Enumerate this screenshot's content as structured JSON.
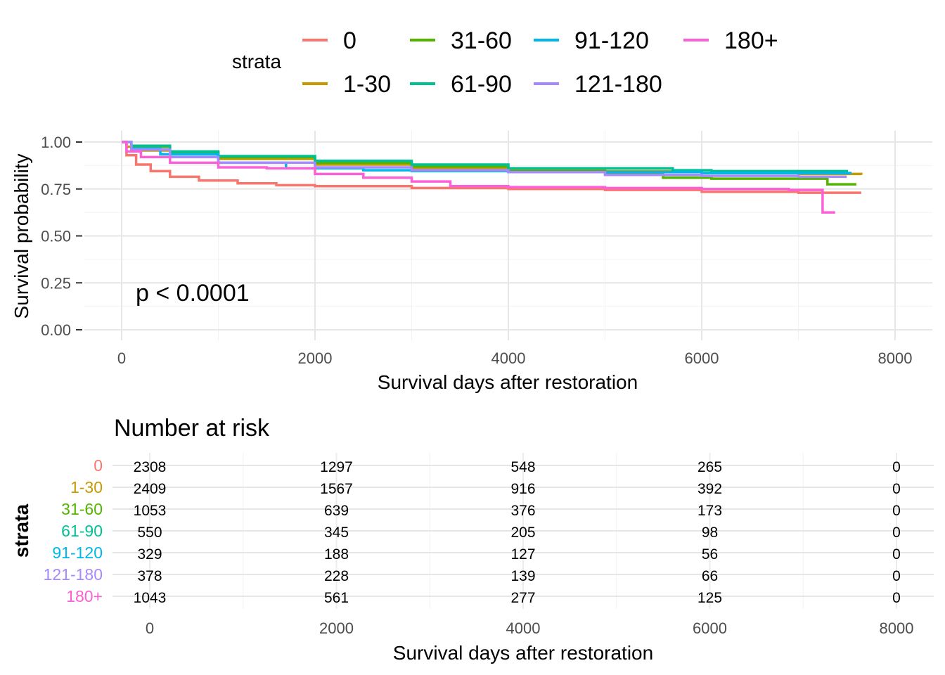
{
  "chart_data": [
    {
      "type": "line",
      "subtype": "kaplan-meier-step",
      "xlabel": "Survival days after restoration",
      "ylabel": "Survival probability",
      "xlim": [
        0,
        8000
      ],
      "ylim": [
        0,
        1
      ],
      "x_ticks": [
        "0",
        "2000",
        "4000",
        "6000",
        "8000"
      ],
      "y_ticks": [
        "0.00",
        "0.25",
        "0.50",
        "0.75",
        "1.00"
      ],
      "grid": true,
      "annotation": "p < 0.0001",
      "legend": {
        "title": "strata",
        "position": "top"
      },
      "series": [
        {
          "name": "0",
          "color": "#F8766D",
          "points": [
            [
              0,
              1.0
            ],
            [
              50,
              0.93
            ],
            [
              150,
              0.88
            ],
            [
              300,
              0.845
            ],
            [
              500,
              0.815
            ],
            [
              800,
              0.795
            ],
            [
              1200,
              0.78
            ],
            [
              1600,
              0.77
            ],
            [
              2000,
              0.765
            ],
            [
              3000,
              0.755
            ],
            [
              4000,
              0.75
            ],
            [
              5000,
              0.745
            ],
            [
              6000,
              0.735
            ],
            [
              7000,
              0.73
            ],
            [
              7650,
              0.73
            ]
          ]
        },
        {
          "name": "1-30",
          "color": "#C49A00",
          "points": [
            [
              0,
              1.0
            ],
            [
              50,
              0.975
            ],
            [
              200,
              0.955
            ],
            [
              500,
              0.935
            ],
            [
              1000,
              0.91
            ],
            [
              2000,
              0.88
            ],
            [
              3000,
              0.86
            ],
            [
              4000,
              0.85
            ],
            [
              5000,
              0.845
            ],
            [
              6000,
              0.835
            ],
            [
              7000,
              0.83
            ],
            [
              7650,
              0.825
            ]
          ]
        },
        {
          "name": "31-60",
          "color": "#53B400",
          "points": [
            [
              0,
              1.0
            ],
            [
              100,
              0.975
            ],
            [
              500,
              0.945
            ],
            [
              1000,
              0.92
            ],
            [
              2000,
              0.89
            ],
            [
              3000,
              0.87
            ],
            [
              4000,
              0.845
            ],
            [
              5000,
              0.83
            ],
            [
              5600,
              0.81
            ],
            [
              6100,
              0.805
            ],
            [
              7300,
              0.805
            ],
            [
              7300,
              0.775
            ],
            [
              7600,
              0.775
            ]
          ]
        },
        {
          "name": "61-90",
          "color": "#00C094",
          "points": [
            [
              0,
              1.0
            ],
            [
              100,
              0.98
            ],
            [
              500,
              0.95
            ],
            [
              1000,
              0.925
            ],
            [
              2000,
              0.9
            ],
            [
              3000,
              0.88
            ],
            [
              4000,
              0.86
            ],
            [
              5000,
              0.86
            ],
            [
              5700,
              0.85
            ],
            [
              6100,
              0.845
            ],
            [
              7500,
              0.84
            ]
          ]
        },
        {
          "name": "91-120",
          "color": "#00B6EB",
          "points": [
            [
              0,
              1.0
            ],
            [
              100,
              0.965
            ],
            [
              400,
              0.935
            ],
            [
              1000,
              0.89
            ],
            [
              1700,
              0.86
            ],
            [
              2500,
              0.85
            ],
            [
              3000,
              0.845
            ],
            [
              4000,
              0.84
            ],
            [
              5000,
              0.84
            ],
            [
              6000,
              0.835
            ],
            [
              7550,
              0.835
            ]
          ]
        },
        {
          "name": "121-180",
          "color": "#A58AFF",
          "points": [
            [
              0,
              1.0
            ],
            [
              100,
              0.96
            ],
            [
              500,
              0.92
            ],
            [
              1000,
              0.89
            ],
            [
              2000,
              0.865
            ],
            [
              3000,
              0.85
            ],
            [
              4000,
              0.84
            ],
            [
              5000,
              0.825
            ],
            [
              6000,
              0.82
            ],
            [
              7000,
              0.815
            ],
            [
              7500,
              0.815
            ]
          ]
        },
        {
          "name": "180+",
          "color": "#FB61D7",
          "points": [
            [
              0,
              1.0
            ],
            [
              50,
              0.95
            ],
            [
              200,
              0.92
            ],
            [
              500,
              0.89
            ],
            [
              1000,
              0.865
            ],
            [
              1500,
              0.86
            ],
            [
              2000,
              0.83
            ],
            [
              2500,
              0.81
            ],
            [
              3000,
              0.79
            ],
            [
              3400,
              0.765
            ],
            [
              4000,
              0.76
            ],
            [
              5000,
              0.755
            ],
            [
              6000,
              0.75
            ],
            [
              6900,
              0.745
            ],
            [
              7250,
              0.745
            ],
            [
              7250,
              0.625
            ],
            [
              7380,
              0.625
            ]
          ]
        }
      ]
    },
    {
      "type": "table",
      "title": "Number at risk",
      "xlabel": "Survival days after restoration",
      "ylabel": "strata",
      "xlim": [
        0,
        8000
      ],
      "x_ticks": [
        "0",
        "2000",
        "4000",
        "6000",
        "8000"
      ],
      "columns_x": [
        0,
        2000,
        4000,
        6000,
        8000
      ],
      "rows": [
        {
          "strata": "0",
          "color": "#F8766D",
          "values": [
            "2308",
            "1297",
            "548",
            "265",
            "0"
          ]
        },
        {
          "strata": "1-30",
          "color": "#C49A00",
          "values": [
            "2409",
            "1567",
            "916",
            "392",
            "0"
          ]
        },
        {
          "strata": "31-60",
          "color": "#53B400",
          "values": [
            "1053",
            "639",
            "376",
            "173",
            "0"
          ]
        },
        {
          "strata": "61-90",
          "color": "#00C094",
          "values": [
            "550",
            "345",
            "205",
            "98",
            "0"
          ]
        },
        {
          "strata": "91-120",
          "color": "#00B6EB",
          "values": [
            "329",
            "188",
            "127",
            "56",
            "0"
          ]
        },
        {
          "strata": "121-180",
          "color": "#A58AFF",
          "values": [
            "378",
            "228",
            "139",
            "66",
            "0"
          ]
        },
        {
          "strata": "180+",
          "color": "#FB61D7",
          "values": [
            "1043",
            "561",
            "277",
            "125",
            "0"
          ]
        }
      ]
    }
  ]
}
